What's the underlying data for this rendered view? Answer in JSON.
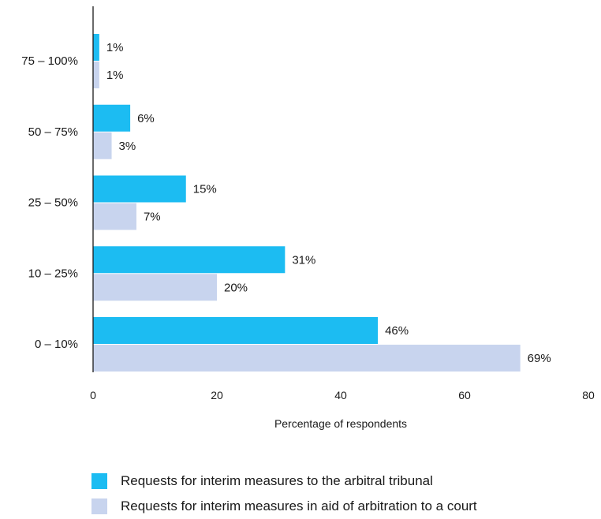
{
  "chart_data": {
    "type": "bar",
    "orientation": "horizontal",
    "categories": [
      "75 – 100%",
      "50 – 75%",
      "25 – 50%",
      "10 – 25%",
      "0 – 10%"
    ],
    "series": [
      {
        "name": "Requests for interim measures to the arbitral tribunal",
        "color": "#1cbcf2",
        "values": [
          1,
          6,
          15,
          31,
          46
        ],
        "labels": [
          "1%",
          "6%",
          "15%",
          "31%",
          "46%"
        ]
      },
      {
        "name": "Requests for interim measures in aid of arbitration to a court",
        "color": "#c8d4ee",
        "values": [
          1,
          3,
          7,
          20,
          69
        ],
        "labels": [
          "1%",
          "3%",
          "7%",
          "20%",
          "69%"
        ]
      }
    ],
    "xlabel": "Percentage of respondents",
    "ylabel": "",
    "title": "",
    "xlim": [
      0,
      80
    ],
    "xticks": [
      "0",
      "20",
      "40",
      "60",
      "80"
    ],
    "grid": false,
    "legend_position": "bottom"
  }
}
